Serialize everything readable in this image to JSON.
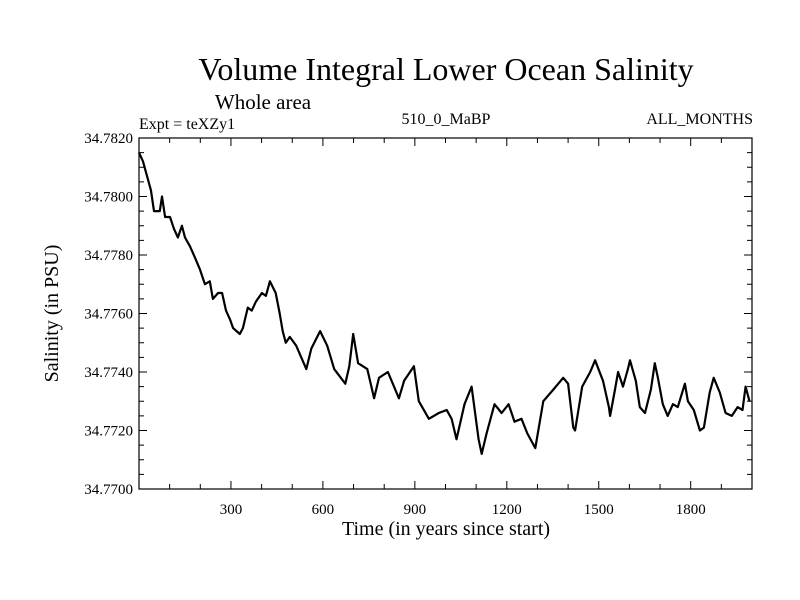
{
  "chart_data": {
    "type": "line",
    "title": "Volume Integral Lower Ocean Salinity",
    "subtitle": "Whole area",
    "annotations": {
      "left": "Expt = teXZy1",
      "center": "510_0_MaBP",
      "right": "ALL_MONTHS"
    },
    "xlabel": "Time (in years since start)",
    "ylabel": "Salinity (in PSU)",
    "xlim": [
      0,
      2000
    ],
    "ylim": [
      34.77,
      34.782
    ],
    "xticks": [
      300,
      600,
      900,
      1200,
      1500,
      1800
    ],
    "xtick_labels": [
      "300",
      "600",
      "900",
      "1200",
      "1500",
      "1800"
    ],
    "x_minor_step": 100,
    "yticks": [
      34.77,
      34.772,
      34.774,
      34.776,
      34.778,
      34.78,
      34.782
    ],
    "ytick_labels": [
      "34.7700",
      "34.7720",
      "34.7740",
      "34.7760",
      "34.7780",
      "34.7800",
      "34.7820"
    ],
    "y_minor_step": 0.0005,
    "grid": false,
    "legend": "none",
    "line_color": "#000000",
    "series": [
      {
        "name": "Salinity",
        "x": [
          0,
          13,
          26,
          39,
          49,
          68,
          75,
          85,
          101,
          114,
          127,
          140,
          150,
          166,
          183,
          199,
          215,
          231,
          241,
          258,
          271,
          284,
          297,
          307,
          329,
          339,
          355,
          368,
          381,
          401,
          414,
          427,
          446,
          459,
          469,
          479,
          492,
          513,
          546,
          562,
          591,
          614,
          637,
          673,
          686,
          699,
          715,
          745,
          767,
          783,
          812,
          848,
          865,
          897,
          913,
          946,
          978,
          1004,
          1020,
          1036,
          1062,
          1085,
          1108,
          1118,
          1134,
          1160,
          1183,
          1206,
          1225,
          1248,
          1267,
          1293,
          1319,
          1352,
          1384,
          1400,
          1417,
          1423,
          1446,
          1472,
          1488,
          1514,
          1533,
          1537,
          1553,
          1563,
          1579,
          1595,
          1602,
          1621,
          1634,
          1651,
          1670,
          1683,
          1693,
          1709,
          1725,
          1742,
          1758,
          1781,
          1791,
          1810,
          1830,
          1843,
          1862,
          1875,
          1895,
          1914,
          1934,
          1953,
          1969,
          1979,
          1992
        ],
        "values": [
          34.7815,
          34.7812,
          34.7807,
          34.7802,
          34.7795,
          34.7795,
          34.78,
          34.7793,
          34.7793,
          34.7789,
          34.7786,
          34.779,
          34.7786,
          34.7783,
          34.7779,
          34.7775,
          34.777,
          34.7771,
          34.7765,
          34.7767,
          34.7767,
          34.7761,
          34.7758,
          34.7755,
          34.7753,
          34.7755,
          34.7762,
          34.7761,
          34.7764,
          34.7767,
          34.7766,
          34.7771,
          34.7767,
          34.776,
          34.7754,
          34.775,
          34.7752,
          34.7749,
          34.7741,
          34.7748,
          34.7754,
          34.7749,
          34.7741,
          34.7736,
          34.7742,
          34.7753,
          34.7743,
          34.7741,
          34.7731,
          34.7738,
          34.774,
          34.7731,
          34.7737,
          34.7742,
          34.773,
          34.7724,
          34.7726,
          34.7727,
          34.7724,
          34.7717,
          34.7729,
          34.7735,
          34.7717,
          34.7712,
          34.7719,
          34.7729,
          34.7726,
          34.7729,
          34.7723,
          34.7724,
          34.7719,
          34.7714,
          34.773,
          34.7734,
          34.7738,
          34.7736,
          34.7721,
          34.772,
          34.7735,
          34.774,
          34.7744,
          34.7737,
          34.7728,
          34.7725,
          34.7734,
          34.774,
          34.7735,
          34.7741,
          34.7744,
          34.7737,
          34.7728,
          34.7726,
          34.7734,
          34.7743,
          34.7738,
          34.7729,
          34.7725,
          34.7729,
          34.7728,
          34.7736,
          34.773,
          34.7727,
          34.772,
          34.7721,
          34.7733,
          34.7738,
          34.7733,
          34.7726,
          34.7725,
          34.7728,
          34.7727,
          34.7735,
          34.773
        ]
      }
    ]
  }
}
